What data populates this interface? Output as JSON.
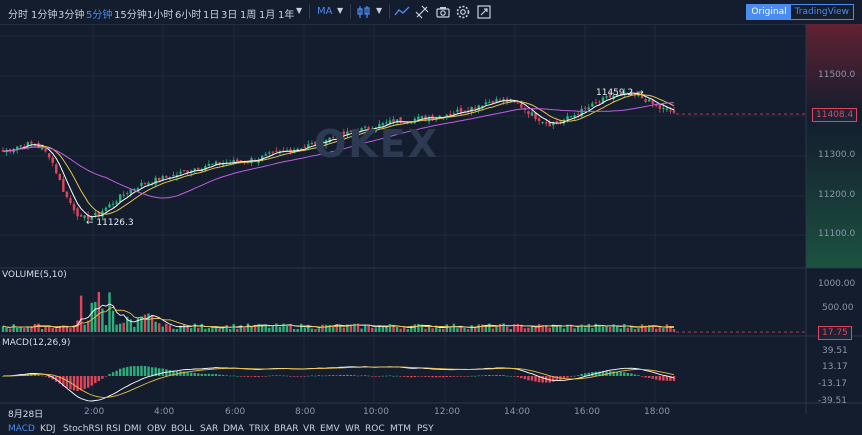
{
  "toolbar": {
    "intervals": [
      "分时",
      "1分钟",
      "3分钟",
      "5分钟",
      "15分钟",
      "1小时",
      "6小时",
      "1日",
      "3日",
      "1周",
      "1月",
      "1年"
    ],
    "active_interval": "5分钟",
    "indicator": "MA",
    "view_original": "Original",
    "view_tradingview": "TradingView"
  },
  "watermark": "OKEX",
  "main_chart": {
    "price_axis": [
      "11500.0",
      "11400.0",
      "11300.0",
      "11200.0",
      "11100.0"
    ],
    "current_price": "11408.4",
    "high_annotation": "11459.2 →",
    "low_annotation": "← 11126.3"
  },
  "volume_panel": {
    "label": "VOLUME(5,10)",
    "axis": [
      "1000.00",
      "500.00"
    ],
    "current": "17.75"
  },
  "macd_panel": {
    "label": "MACD(12,26,9)",
    "axis": [
      "39.51",
      "13.17",
      "-13.17",
      "-39.51"
    ]
  },
  "time_axis": [
    "8月28日",
    "2:00",
    "4:00",
    "6:00",
    "8:00",
    "10:00",
    "12:00",
    "14:00",
    "16:00",
    "18:00"
  ],
  "bottom_tabs": [
    "MACD",
    "KDJ",
    "StochRSI",
    "RSI",
    "DMI",
    "OBV",
    "BOLL",
    "SAR",
    "DMA",
    "TRIX",
    "BRAR",
    "VR",
    "EMV",
    "WR",
    "ROC",
    "MTM",
    "PSY"
  ],
  "active_tab": "MACD",
  "colors": {
    "up": "#2eae7c",
    "down": "#e0465a",
    "accent": "#4a8cf0",
    "background": "#131d2e"
  },
  "chart_data": {
    "type": "candlestick",
    "price_close_approx": [
      11310,
      11325,
      11330,
      11300,
      11200,
      11140,
      11150,
      11180,
      11210,
      11230,
      11240,
      11250,
      11265,
      11275,
      11280,
      11285,
      11290,
      11300,
      11310,
      11320,
      11330,
      11345,
      11355,
      11365,
      11375,
      11385,
      11390,
      11395,
      11400,
      11410,
      11420,
      11435,
      11440,
      11430,
      11400,
      11380,
      11390,
      11410,
      11430,
      11450,
      11455,
      11445,
      11420,
      11408.4
    ],
    "high": 11459.2,
    "low": 11126.3,
    "last": 11408.4
  }
}
